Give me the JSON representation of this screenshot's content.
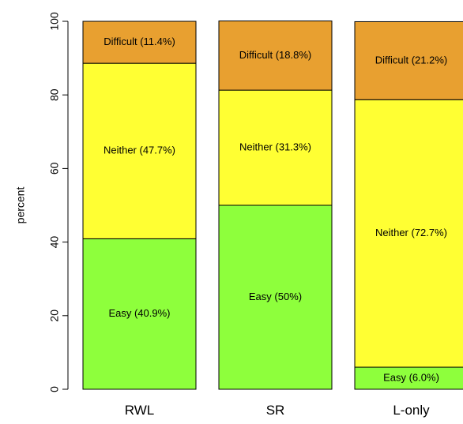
{
  "chart_data": {
    "type": "bar",
    "stacked": true,
    "categories": [
      "RWL",
      "SR",
      "L-only"
    ],
    "series": [
      {
        "name": "Easy",
        "color": "#8eff3c",
        "values": [
          40.9,
          50,
          6.0
        ],
        "labels": [
          "Easy (40.9%)",
          "Easy (50%)",
          "Easy (6.0%)"
        ]
      },
      {
        "name": "Neither",
        "color": "#ffff33",
        "values": [
          47.7,
          31.3,
          72.7
        ],
        "labels": [
          "Neither (47.7%)",
          "Neither (31.3%)",
          "Neither (72.7%)"
        ]
      },
      {
        "name": "Difficult",
        "color": "#e8a030",
        "values": [
          11.4,
          18.8,
          21.2
        ],
        "labels": [
          "Difficult (11.4%)",
          "Difficult (18.8%)",
          "Difficult (21.2%)"
        ]
      }
    ],
    "title": "",
    "xlabel": "",
    "ylabel": "percent",
    "ylim": [
      0,
      100
    ],
    "yticks": [
      0,
      20,
      40,
      60,
      80,
      100
    ],
    "grid": false,
    "legend": "none"
  }
}
